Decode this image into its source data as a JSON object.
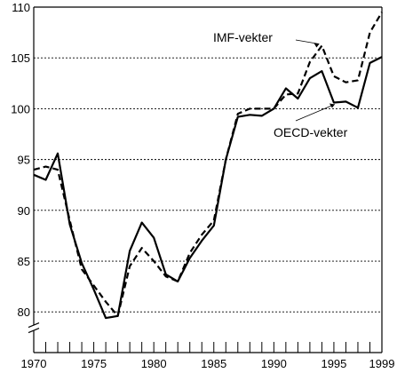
{
  "chart_data": {
    "type": "line",
    "title": "",
    "xlabel": "",
    "ylabel": "",
    "ylim": [
      76,
      110
    ],
    "xlim": [
      1970,
      1999
    ],
    "y_ticks": [
      80,
      85,
      90,
      95,
      100,
      105,
      110
    ],
    "x_ticks": [
      1970,
      1975,
      1980,
      1985,
      1990,
      1995,
      1999
    ],
    "y_axis_break": true,
    "grid": "horizontal dashed at y ticks",
    "legend": "none (direct labels with pointer lines)",
    "x": [
      1970,
      1971,
      1972,
      1973,
      1974,
      1975,
      1976,
      1977,
      1978,
      1979,
      1980,
      1981,
      1982,
      1983,
      1984,
      1985,
      1986,
      1987,
      1988,
      1989,
      1990,
      1991,
      1992,
      1993,
      1994,
      1995,
      1996,
      1997,
      1998,
      1999
    ],
    "series": [
      {
        "name": "IMF-vekter",
        "style": "dashed",
        "color": "#000000",
        "values": [
          94.0,
          94.3,
          94.0,
          89.0,
          84.2,
          82.6,
          81.0,
          79.6,
          84.5,
          86.3,
          85.0,
          83.5,
          83.0,
          85.8,
          87.6,
          89.0,
          95.0,
          99.5,
          100.0,
          100.0,
          100.0,
          101.4,
          101.5,
          104.6,
          106.2,
          103.2,
          102.6,
          102.8,
          107.5,
          109.5
        ]
      },
      {
        "name": "OECD-vekter",
        "style": "solid",
        "color": "#000000",
        "values": [
          93.5,
          93.0,
          95.6,
          88.6,
          84.8,
          82.2,
          79.4,
          79.6,
          86.0,
          88.8,
          87.3,
          83.7,
          83.0,
          85.3,
          87.0,
          88.5,
          95.0,
          99.2,
          99.4,
          99.3,
          100.0,
          102.0,
          101.0,
          103.0,
          103.7,
          100.6,
          100.7,
          100.1,
          104.5,
          105.1
        ]
      }
    ],
    "annotations": [
      {
        "text": "IMF-vekter",
        "series": "IMF-vekter",
        "points_to_x": 1994
      },
      {
        "text": "OECD-vekter",
        "series": "OECD-vekter",
        "points_to_x": 1995
      }
    ]
  }
}
